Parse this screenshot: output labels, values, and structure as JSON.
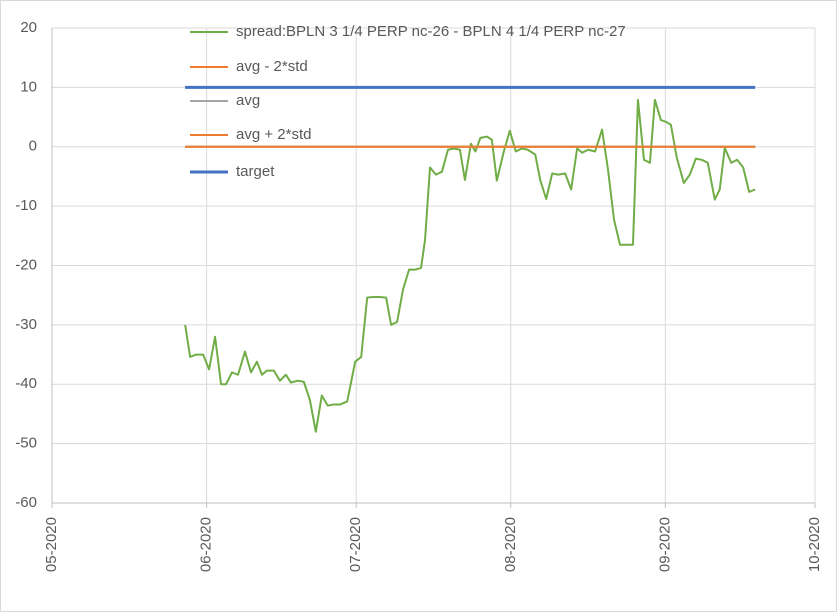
{
  "chart_data": {
    "type": "line",
    "xlim": [
      0,
      153
    ],
    "xticks": [
      {
        "value": 0,
        "label": "05-2020"
      },
      {
        "value": 31,
        "label": "06-2020"
      },
      {
        "value": 61,
        "label": "07-2020"
      },
      {
        "value": 92,
        "label": "08-2020"
      },
      {
        "value": 123,
        "label": "09-2020"
      },
      {
        "value": 153,
        "label": "10-2020"
      }
    ],
    "ylim": [
      -60,
      20
    ],
    "yticks": [
      -60,
      -50,
      -40,
      -30,
      -20,
      -10,
      0,
      10,
      20
    ],
    "grid": true,
    "legend": "top",
    "series": [
      {
        "name": "spread:BPLN 3 1/4 PERP nc-26 - BPLN 4 1/4 PERP nc-27",
        "color": "#70ad47",
        "x": [
          26.7,
          27.7,
          28.9,
          30.3,
          31.5,
          32.7,
          33.9,
          34.9,
          36.1,
          37.3,
          38.7,
          39.9,
          41.1,
          42.1,
          43.1,
          44.5,
          45.7,
          46.9,
          47.9,
          49.3,
          50.5,
          51.7,
          52.9,
          54.1,
          55.3,
          56.5,
          57.8,
          59.2,
          60.8,
          62,
          63.2,
          64.4,
          65.6,
          67,
          68,
          69.2,
          70.4,
          71.6,
          72.8,
          74,
          74.8,
          75.8,
          77,
          78.2,
          79.4,
          80.6,
          81.8,
          82.8,
          84,
          84.9,
          85.9,
          87.2,
          88.2,
          89.2,
          90.6,
          91.8,
          93,
          94.2,
          95.4,
          96.9,
          97.9,
          99.1,
          100.3,
          101.5,
          102.9,
          104.1,
          105.3,
          106.3,
          107.5,
          108.9,
          110.3,
          111.5,
          112.7,
          113.9,
          115.1,
          116.5,
          117.5,
          118.7,
          119.9,
          120.9,
          122.1,
          123.1,
          124.1,
          125.3,
          126.7,
          127.9,
          129.1,
          130.3,
          131.5,
          132.9,
          133.9,
          134.9,
          136.2,
          137.4,
          138.6,
          139.8,
          141
        ],
        "values": [
          -30,
          -35.4,
          -35,
          -35,
          -37.5,
          -32,
          -40,
          -40,
          -38,
          -38.4,
          -34.5,
          -38,
          -36.2,
          -38.4,
          -37.7,
          -37.7,
          -39.4,
          -38.4,
          -39.7,
          -39.4,
          -39.6,
          -42.6,
          -48,
          -41.9,
          -43.6,
          -43.4,
          -43.4,
          -42.9,
          -36.2,
          -35.4,
          -25.4,
          -25.3,
          -25.3,
          -25.4,
          -30,
          -29.5,
          -24,
          -20.7,
          -20.7,
          -20.4,
          -15.7,
          -3.5,
          -4.7,
          -4.2,
          -0.5,
          -0.3,
          -0.5,
          -5.6,
          0.5,
          -0.8,
          1.5,
          1.7,
          1.2,
          -5.7,
          -0.8,
          2.7,
          -0.8,
          -0.3,
          -0.5,
          -1.3,
          -5.6,
          -8.8,
          -4.5,
          -4.7,
          -4.5,
          -7.2,
          -0.3,
          -1,
          -0.5,
          -0.8,
          2.9,
          -3.9,
          -12.3,
          -16.5,
          -16.5,
          -16.5,
          7.9,
          -2.2,
          -2.7,
          7.9,
          4.5,
          4.2,
          3.7,
          -1.9,
          -6.1,
          -4.7,
          -2,
          -2.2,
          -2.7,
          -8.9,
          -7.2,
          -0.2,
          -2.7,
          -2.2,
          -3.5,
          -7.6,
          -7.2
        ]
      },
      {
        "name": "avg - 2*std",
        "color": "#ed7d31",
        "x": [
          26.7,
          141
        ],
        "values": [
          0,
          0
        ]
      },
      {
        "name": "avg",
        "color": "#a5a5a5",
        "x": [
          26.7,
          141
        ],
        "values": [
          0,
          0
        ]
      },
      {
        "name": "avg + 2*std",
        "color": "#ed7d31",
        "x": [
          26.7,
          141
        ],
        "values": [
          0,
          0
        ]
      },
      {
        "name": "target",
        "color": "#4472c4",
        "x": [
          26.7,
          141
        ],
        "values": [
          10,
          10
        ]
      }
    ]
  }
}
